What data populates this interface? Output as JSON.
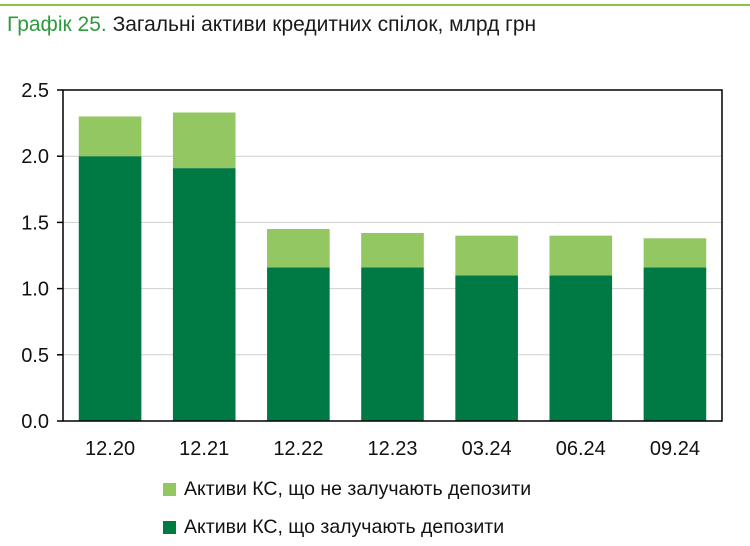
{
  "title_number": "Графік 25.",
  "title_text": "Загальні активи кредитних спілок, млрд грн",
  "colors": {
    "light": "#92c761",
    "dark": "#007a45",
    "grid": "#cfcfcf",
    "axis": "#000000"
  },
  "chart_data": {
    "type": "bar",
    "stacked": true,
    "categories": [
      "12.20",
      "12.21",
      "12.22",
      "12.23",
      "03.24",
      "06.24",
      "09.24"
    ],
    "series": [
      {
        "name": "Активи КС, що залучають депозити",
        "color": "#007a45",
        "values": [
          2.0,
          1.91,
          1.16,
          1.16,
          1.1,
          1.1,
          1.16
        ]
      },
      {
        "name": "Активи КС, що не залучають депозити",
        "color": "#92c761",
        "values": [
          0.3,
          0.42,
          0.29,
          0.26,
          0.3,
          0.3,
          0.22
        ]
      }
    ],
    "ylim": [
      0,
      2.5
    ],
    "yticks": [
      "0.0",
      "0.5",
      "1.0",
      "1.5",
      "2.0",
      "2.5"
    ],
    "ytick_values": [
      0,
      0.5,
      1.0,
      1.5,
      2.0,
      2.5
    ],
    "legend": [
      "Активи КС, що не залучають депозити",
      "Активи КС, що залучають депозити"
    ]
  }
}
